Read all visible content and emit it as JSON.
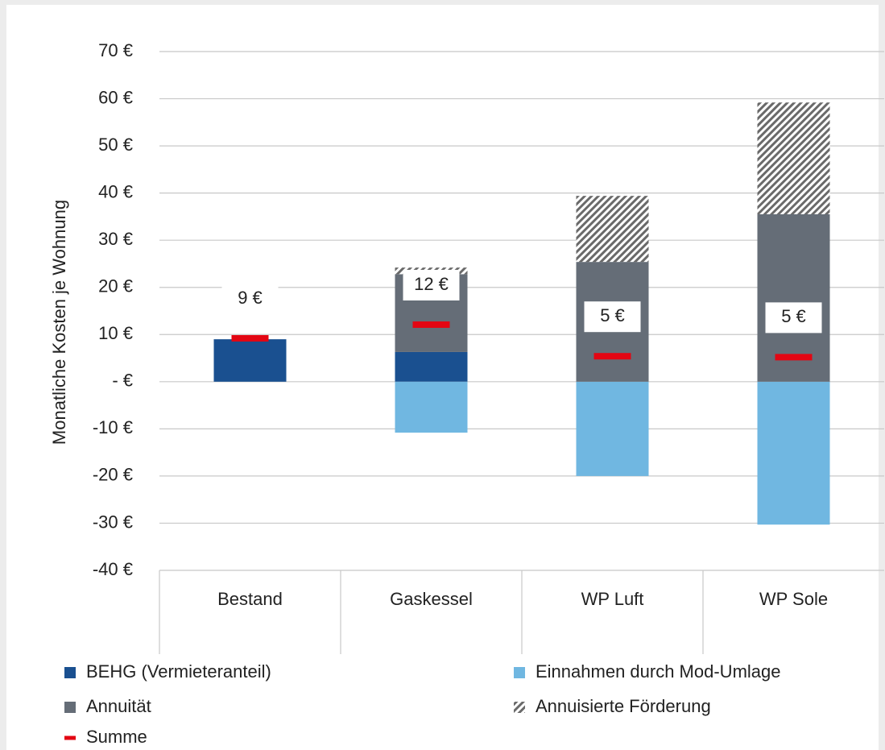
{
  "chart_data": {
    "type": "bar",
    "stacked": true,
    "y_label": "Monatliche Kosten je Wohnung",
    "categories": [
      "Bestand",
      "Gaskessel",
      "WP Luft",
      "WP Sole"
    ],
    "series": [
      {
        "name": "BEHG (Vermieteranteil)",
        "color": "#1a5090",
        "values": [
          9,
          6.3,
          null,
          null
        ]
      },
      {
        "name": "Einnahmen durch Mod-Umlage",
        "color": "#70b7e1",
        "values": [
          null,
          -10.8,
          -20,
          -30.3
        ]
      },
      {
        "name": "Annuität",
        "color": "#656d77",
        "values": [
          null,
          16.5,
          25.4,
          35.5
        ]
      },
      {
        "name": "Annuisierte Förderung",
        "color": "#6a6a6a",
        "pattern": "hatch",
        "values": [
          null,
          1.4,
          14,
          23.7
        ]
      },
      {
        "name": "Summe",
        "color": "#e30613",
        "marker": "dash",
        "values": [
          9.2,
          12.1,
          5.4,
          5.2
        ],
        "value_labels": [
          "9 €",
          "12 €",
          "5 €",
          "5 €"
        ]
      }
    ],
    "ylim": [
      -40,
      70
    ],
    "yticks": [
      {
        "value": -40,
        "label": "-40 €"
      },
      {
        "value": -30,
        "label": "-30 €"
      },
      {
        "value": -20,
        "label": "-20 €"
      },
      {
        "value": -10,
        "label": "-10 €"
      },
      {
        "value": 0,
        "label": "-  €"
      },
      {
        "value": 10,
        "label": "10 €"
      },
      {
        "value": 20,
        "label": "20 €"
      },
      {
        "value": 30,
        "label": "30 €"
      },
      {
        "value": 40,
        "label": "40 €"
      },
      {
        "value": 50,
        "label": "50 €"
      },
      {
        "value": 60,
        "label": "60 €"
      },
      {
        "value": 70,
        "label": "70 €"
      }
    ],
    "grid": true,
    "legend": "bottom"
  }
}
